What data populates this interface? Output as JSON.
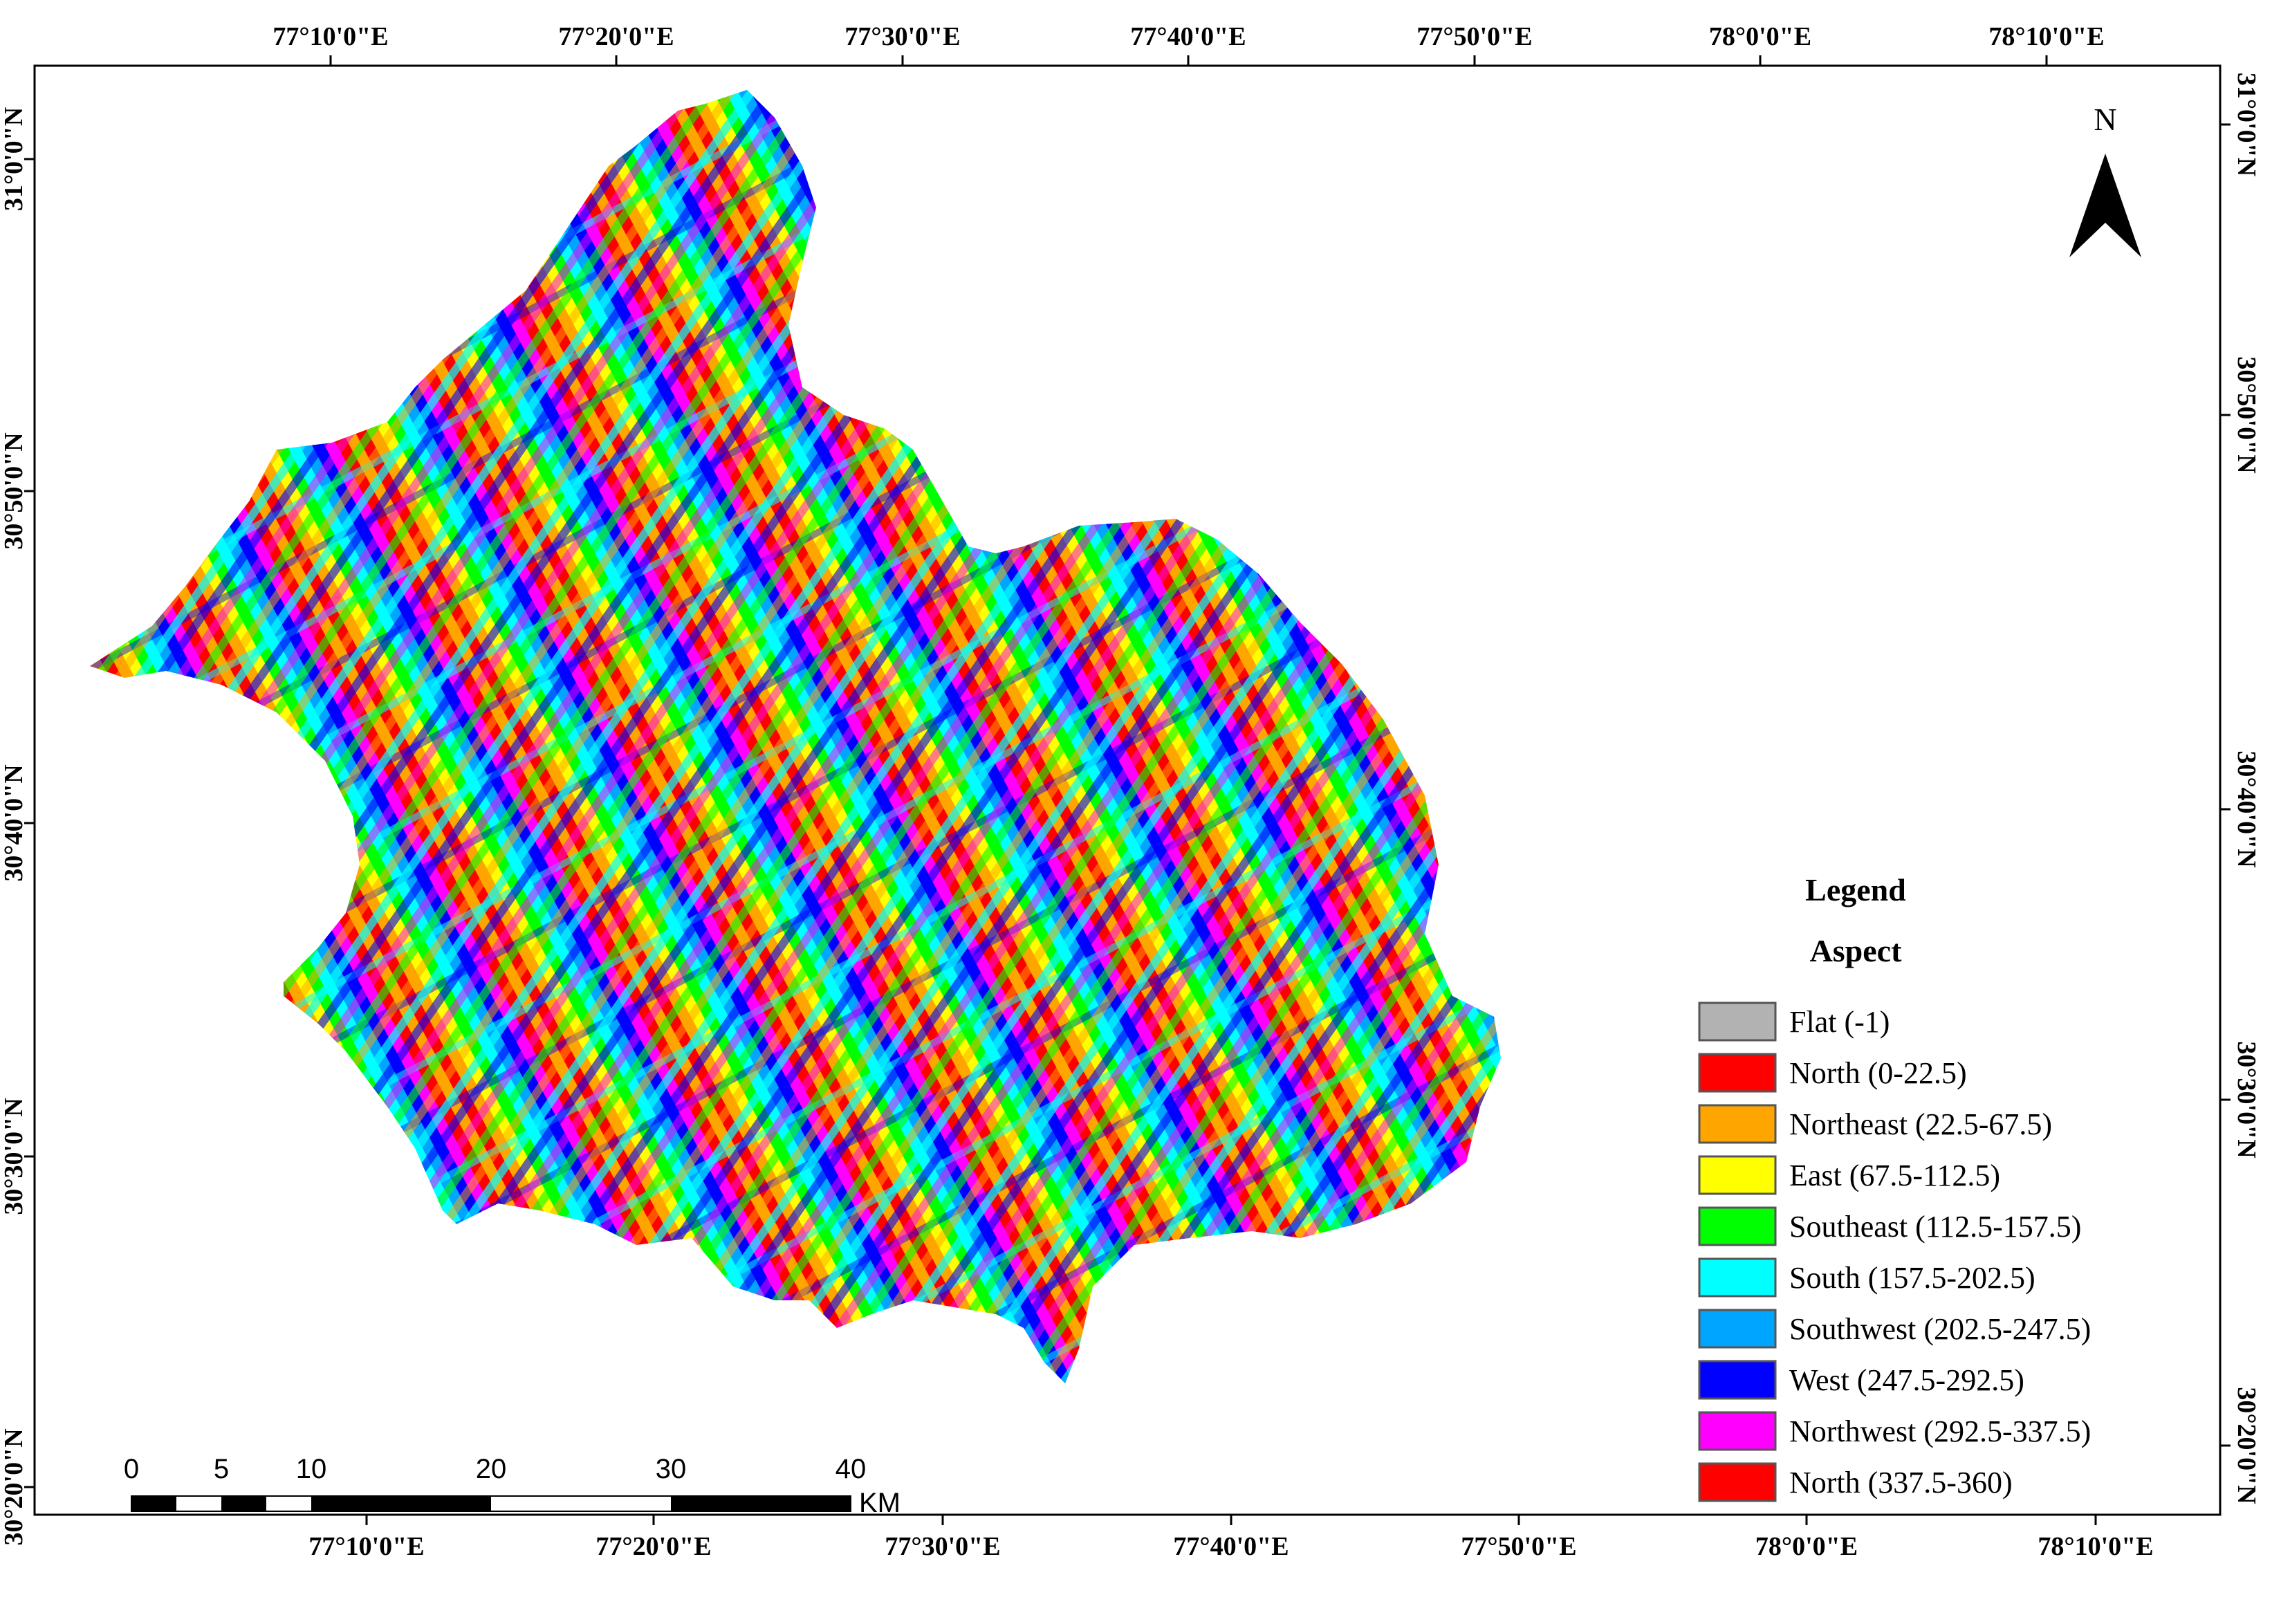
{
  "map": {
    "top_ticks": [
      "77°10'0\"E",
      "77°20'0\"E",
      "77°30'0\"E",
      "77°40'0\"E",
      "77°50'0\"E",
      "78°0'0\"E",
      "78°10'0\"E"
    ],
    "bottom_ticks": [
      "77°10'0\"E",
      "77°20'0\"E",
      "77°30'0\"E",
      "77°40'0\"E",
      "77°50'0\"E",
      "78°0'0\"E",
      "78°10'0\"E"
    ],
    "left_ticks": [
      "31°0'0\"N",
      "30°50'0\"N",
      "30°40'0\"N",
      "30°30'0\"N",
      "30°20'0\"N"
    ],
    "right_ticks": [
      "31°0'0\"N",
      "30°50'0\"N",
      "30°40'0\"N",
      "30°30'0\"N",
      "30°20'0\"N"
    ]
  },
  "north_arrow": {
    "label": "N"
  },
  "legend": {
    "title": "Legend",
    "subtitle": "Aspect",
    "items": [
      {
        "label": "Flat (-1)",
        "color": "#b2b2b2"
      },
      {
        "label": "North (0-22.5)",
        "color": "#ff0000"
      },
      {
        "label": "Northeast (22.5-67.5)",
        "color": "#ffa500"
      },
      {
        "label": "East (67.5-112.5)",
        "color": "#ffff00"
      },
      {
        "label": "Southeast (112.5-157.5)",
        "color": "#00ff00"
      },
      {
        "label": "South (157.5-202.5)",
        "color": "#00ffff"
      },
      {
        "label": "Southwest (202.5-247.5)",
        "color": "#00a5ff"
      },
      {
        "label": "West (247.5-292.5)",
        "color": "#0000ff"
      },
      {
        "label": "Northwest (292.5-337.5)",
        "color": "#ff00ff"
      },
      {
        "label": "North (337.5-360)",
        "color": "#ff0000"
      }
    ]
  },
  "scale_bar": {
    "labels": [
      "0",
      "5",
      "10",
      "20",
      "30",
      "40"
    ],
    "unit": "KM"
  }
}
